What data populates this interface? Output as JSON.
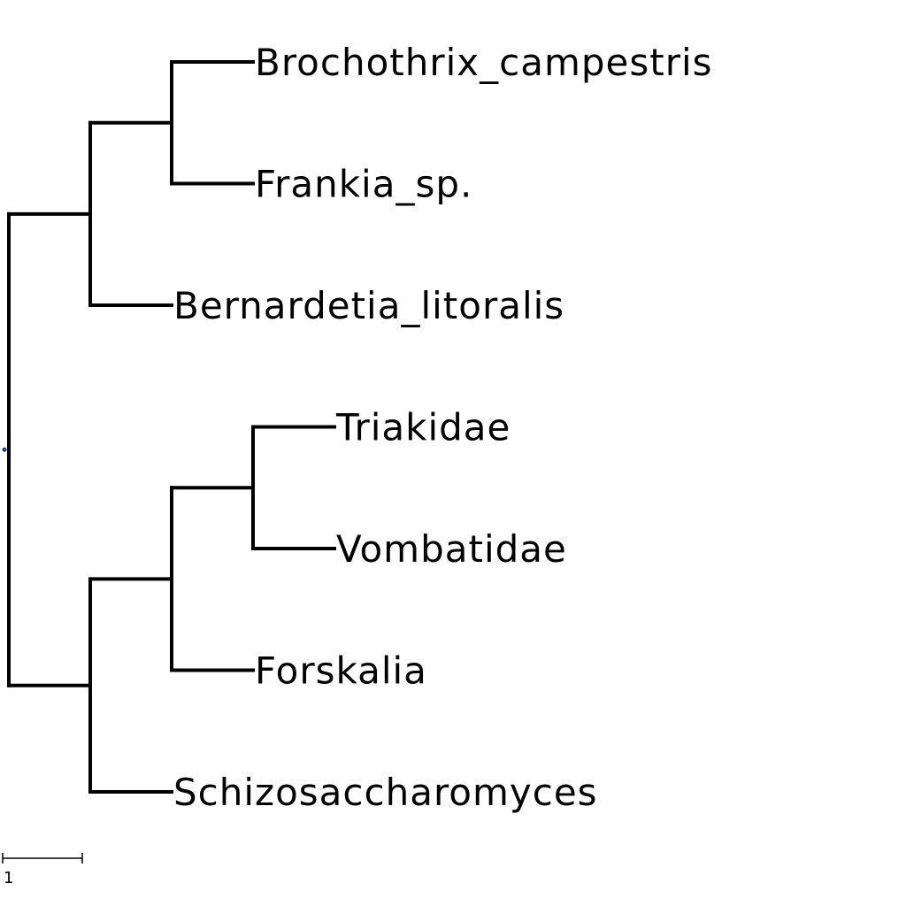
{
  "tree": {
    "root_marker_color": "#1f3fa8",
    "branch_color": "#000000",
    "nodes": {
      "root": {
        "depth": 0,
        "children": [
          "clade_a",
          "clade_b"
        ]
      },
      "clade_a": {
        "depth": 1,
        "children": [
          "clade_a1",
          "Bernardetia_litoralis"
        ]
      },
      "clade_a1": {
        "depth": 2,
        "children": [
          "Brochothrix_campestris",
          "Frankia_sp."
        ]
      },
      "clade_b": {
        "depth": 1,
        "children": [
          "clade_b1",
          "Schizosaccharomyces"
        ]
      },
      "clade_b1": {
        "depth": 2,
        "children": [
          "clade_b2",
          "Forskalia"
        ]
      },
      "clade_b2": {
        "depth": 3,
        "children": [
          "Triakidae",
          "Vombatidae"
        ]
      }
    },
    "leaves": [
      {
        "id": "Brochothrix_campestris",
        "label": "Brochothrix_campestris",
        "depth": 3
      },
      {
        "id": "Frankia_sp.",
        "label": "Frankia_sp.",
        "depth": 3
      },
      {
        "id": "Bernardetia_litoralis",
        "label": "Bernardetia_litoralis",
        "depth": 2
      },
      {
        "id": "Triakidae",
        "label": "Triakidae",
        "depth": 4
      },
      {
        "id": "Vombatidae",
        "label": "Vombatidae",
        "depth": 4
      },
      {
        "id": "Forskalia",
        "label": "Forskalia",
        "depth": 3
      },
      {
        "id": "Schizosaccharomyces",
        "label": "Schizosaccharomyces",
        "depth": 2
      }
    ]
  },
  "scale_bar": {
    "length": 1,
    "label": "1"
  }
}
